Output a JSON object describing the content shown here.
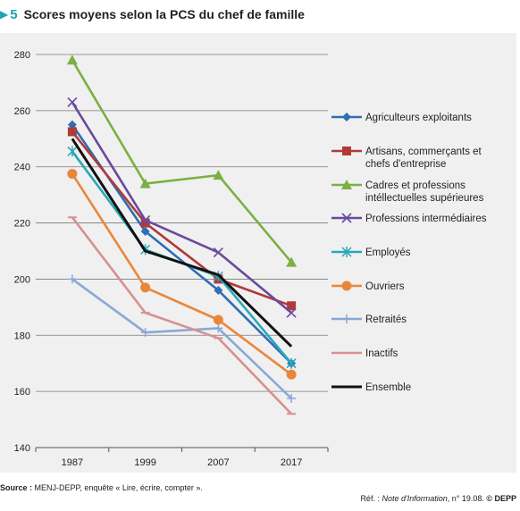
{
  "header": {
    "marker": "▶",
    "number": "5",
    "title": "Scores moyens selon la PCS du chef de famille"
  },
  "chart_data": {
    "type": "line",
    "title": "Scores moyens selon la PCS du chef de famille",
    "xlabel": "",
    "ylabel": "",
    "x": [
      "1987",
      "1999",
      "2007",
      "2017"
    ],
    "ylim": [
      140,
      280
    ],
    "yticks": [
      140,
      160,
      180,
      200,
      220,
      240,
      260,
      280
    ],
    "grid": true,
    "legend_position": "right",
    "series": [
      {
        "name": "Agriculteurs exploitants",
        "values": [
          255,
          217,
          196,
          170
        ],
        "color": "#2e6eb4",
        "marker": "diamond"
      },
      {
        "name": "Artisans, commerçants et chefs d'entreprise",
        "name_lines": [
          "Artisans, commerçants et",
          "chefs d'entreprise"
        ],
        "values": [
          252.5,
          220,
          200,
          190.5
        ],
        "color": "#b03a3a",
        "marker": "square"
      },
      {
        "name": "Cadres et professions intéllectuelles supérieures",
        "name_lines": [
          "Cadres et professions",
          "intéllectuelles supérieures"
        ],
        "values": [
          278,
          234,
          237,
          206
        ],
        "color": "#7bb044",
        "marker": "triangle"
      },
      {
        "name": "Professions intermédiaires",
        "values": [
          263,
          221,
          209.5,
          188
        ],
        "color": "#6a4a9c",
        "marker": "x"
      },
      {
        "name": "Employés",
        "values": [
          245.5,
          210.5,
          201,
          170
        ],
        "color": "#2aa8b8",
        "marker": "star"
      },
      {
        "name": "Ouvriers",
        "values": [
          237.5,
          197,
          185.5,
          166
        ],
        "color": "#e8873a",
        "marker": "circle"
      },
      {
        "name": "Retraités",
        "values": [
          200,
          181,
          182.5,
          157.5
        ],
        "color": "#8aa8d4",
        "marker": "plus"
      },
      {
        "name": "Inactifs",
        "values": [
          222,
          188,
          179,
          152
        ],
        "color": "#d89090",
        "marker": "dash"
      },
      {
        "name": "Ensemble",
        "values": [
          250,
          210,
          201.5,
          176
        ],
        "color": "#111111",
        "marker": "none"
      }
    ]
  },
  "footer": {
    "source_label": "Source :",
    "source_text": " MENJ-DEPP, enquête « Lire, écrire, compter ».",
    "ref_label": "Réf. : ",
    "ref_italic": "Note d'Information",
    "ref_rest": ", n° 19.08. ",
    "ref_bold": "© DEPP"
  }
}
